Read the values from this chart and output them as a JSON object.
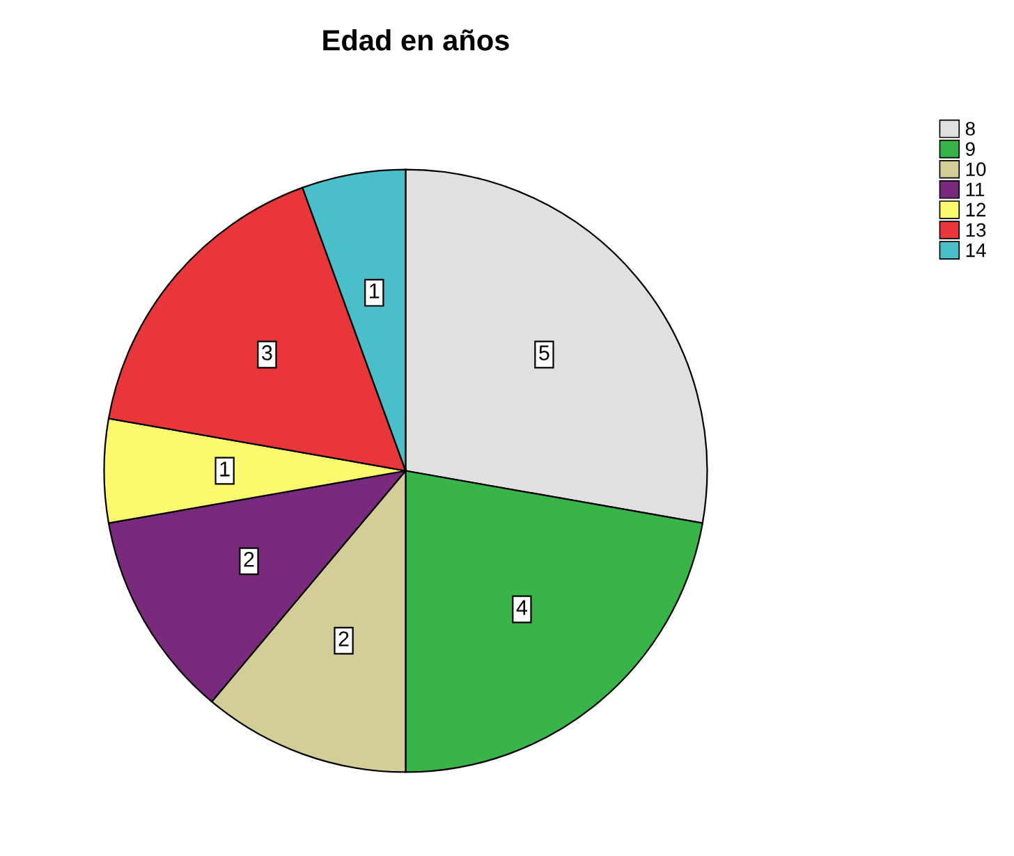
{
  "chart_data": {
    "type": "pie",
    "title": "Edad en años",
    "categories": [
      "8",
      "9",
      "10",
      "11",
      "12",
      "13",
      "14"
    ],
    "values": [
      5,
      4,
      2,
      2,
      1,
      3,
      1
    ],
    "colors": [
      "#e0e0e0",
      "#38b449",
      "#d3cd98",
      "#7a2a7d",
      "#fdf96f",
      "#e8363a",
      "#4bbfc9"
    ],
    "data_labels": true,
    "legend": "top right"
  }
}
